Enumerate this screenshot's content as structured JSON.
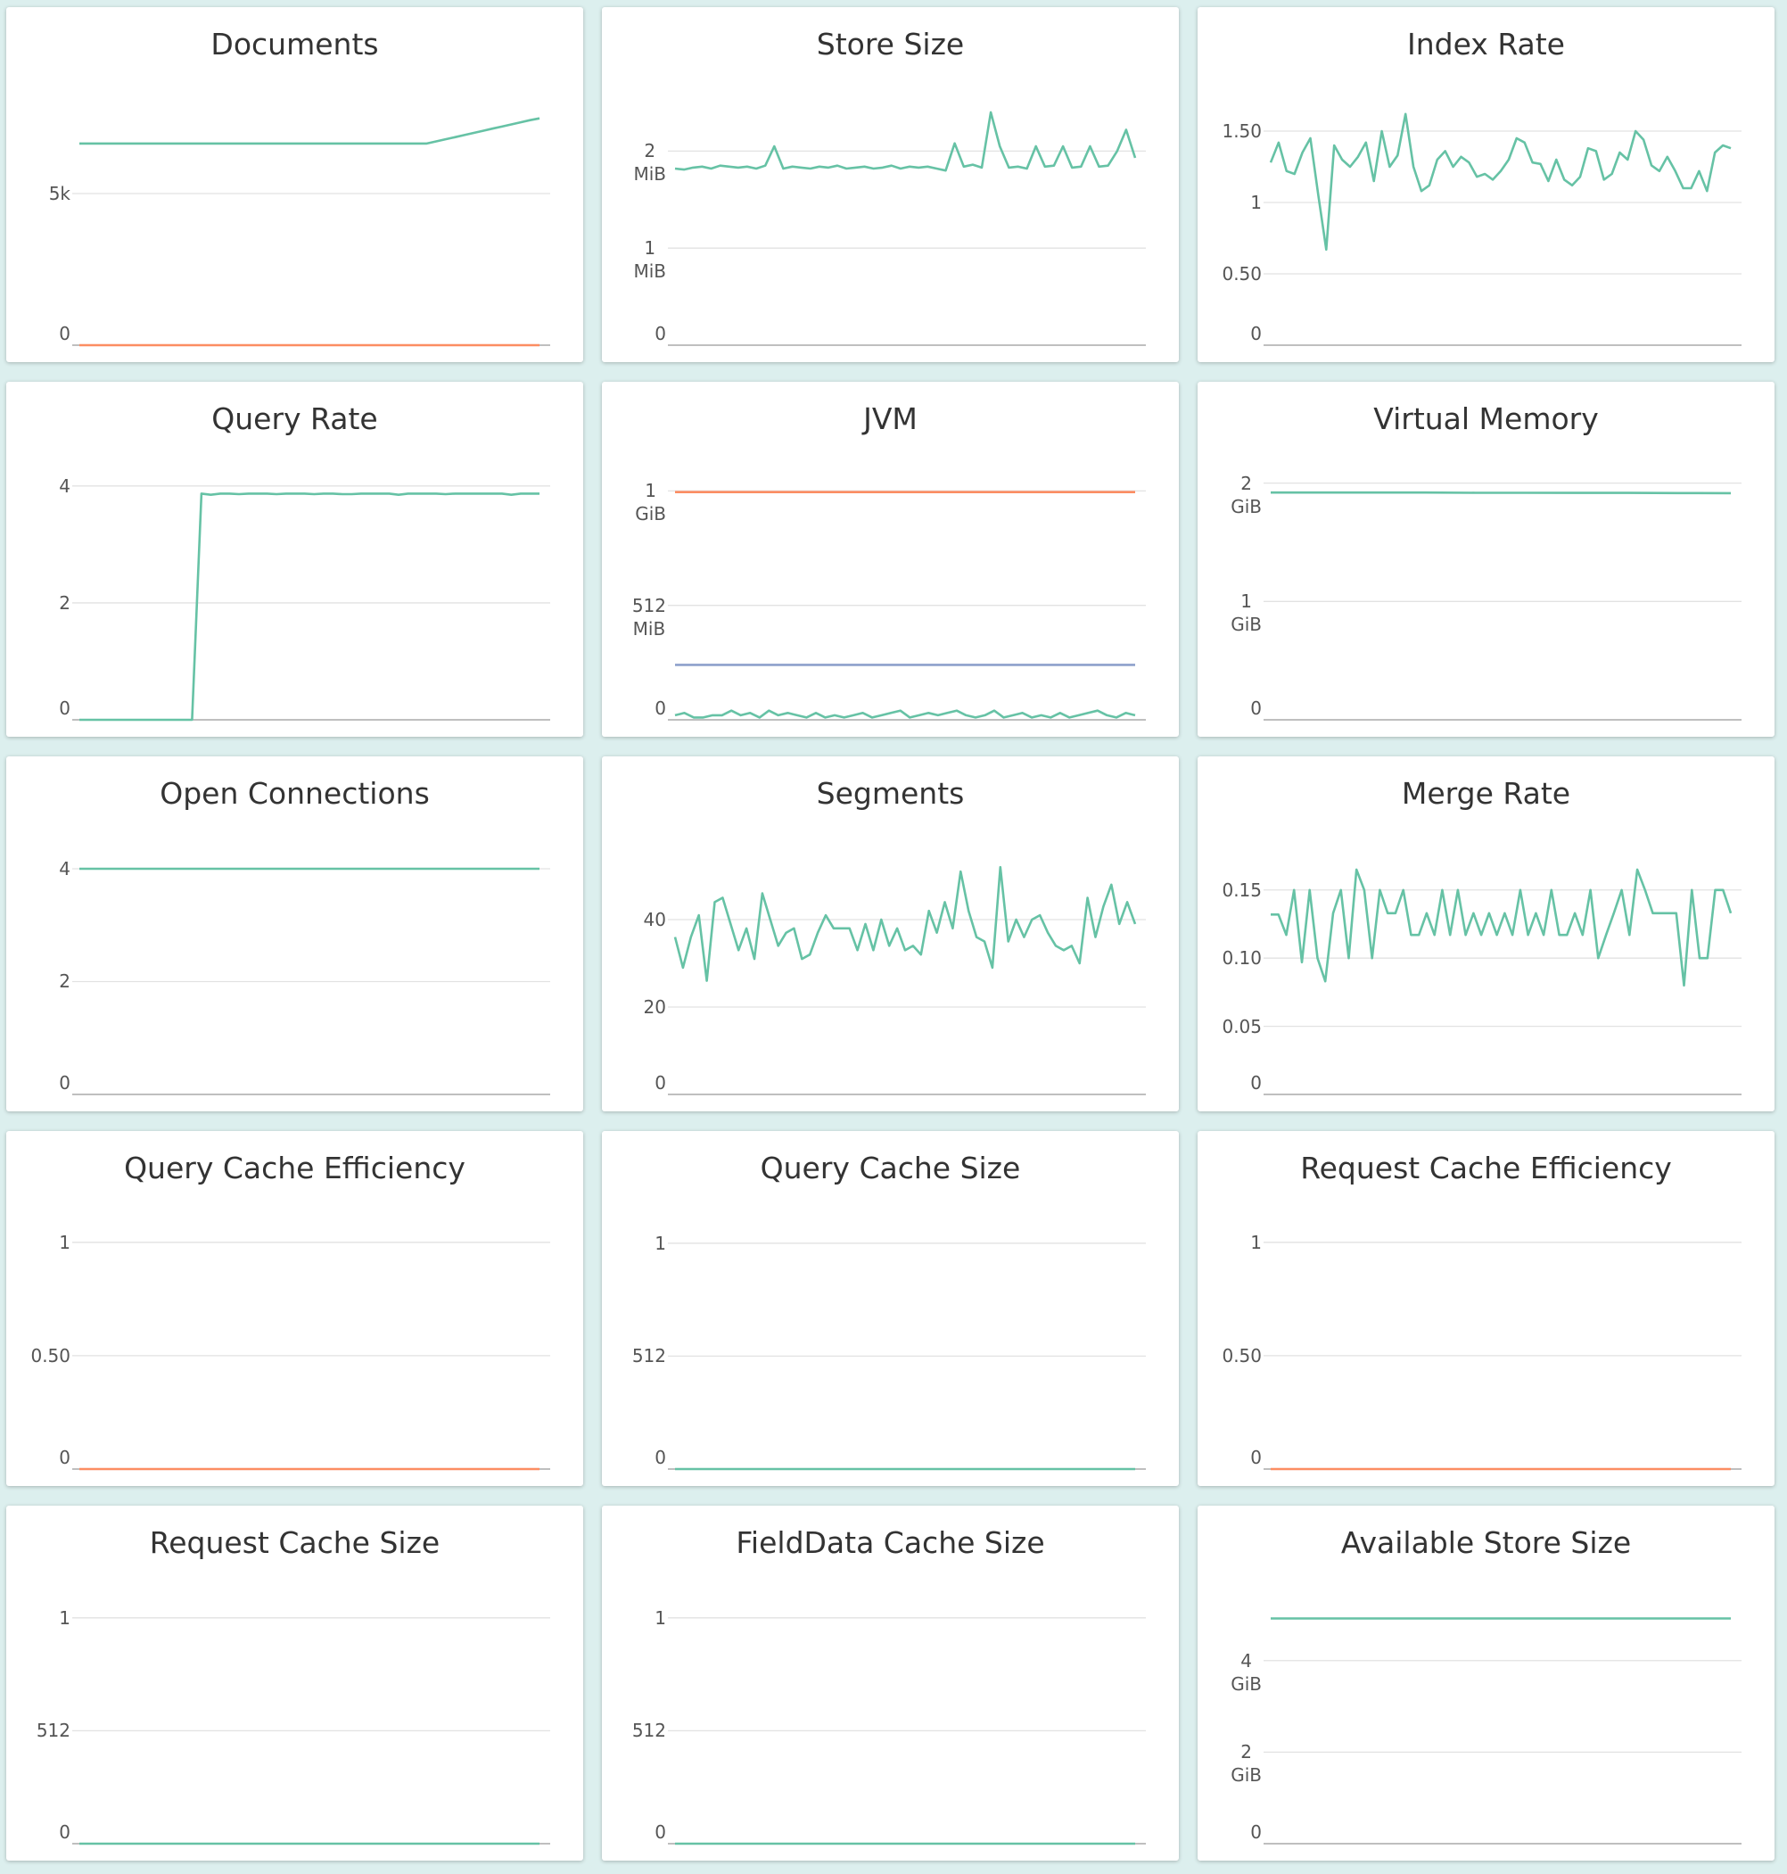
{
  "chart_data": [
    {
      "type": "line",
      "title": "Documents",
      "ylim": [
        0,
        8000
      ],
      "yticks": [
        0,
        {
          "value": 5000,
          "label": "5k"
        }
      ],
      "grid": true,
      "series": [
        {
          "color": "#66c2a5",
          "values": [
            6650,
            6650,
            6650,
            6650,
            6650,
            6650,
            6650,
            6650,
            6650,
            6650,
            6650,
            6650,
            6650,
            6650,
            6650,
            6650,
            6650,
            6650,
            6650,
            6650,
            6650,
            6650,
            6650,
            6650,
            6650,
            6650,
            6650,
            6650,
            6650,
            6650,
            6650,
            6650,
            6650,
            6650,
            6650,
            6650,
            6650,
            6650,
            6720,
            6790,
            6860,
            6930,
            7000,
            7070,
            7140,
            7210,
            7280,
            7350,
            7420,
            7480
          ]
        },
        {
          "color": "#fc8d62",
          "values": [
            0,
            0,
            0,
            0,
            0,
            0,
            0,
            0,
            0,
            0
          ]
        }
      ]
    },
    {
      "type": "line",
      "title": "Store Size",
      "ylim": [
        0,
        2.5
      ],
      "yticks": [
        0,
        {
          "value": 1,
          "label": "1\nMiB"
        },
        {
          "value": 2,
          "label": "2\nMiB"
        }
      ],
      "grid": true,
      "series": [
        {
          "color": "#66c2a5",
          "values": [
            1.82,
            1.81,
            1.83,
            1.84,
            1.82,
            1.85,
            1.84,
            1.83,
            1.84,
            1.82,
            1.85,
            2.05,
            1.82,
            1.84,
            1.83,
            1.82,
            1.84,
            1.83,
            1.85,
            1.82,
            1.83,
            1.84,
            1.82,
            1.83,
            1.85,
            1.82,
            1.84,
            1.83,
            1.84,
            1.82,
            1.8,
            2.08,
            1.84,
            1.86,
            1.83,
            2.4,
            2.05,
            1.83,
            1.84,
            1.82,
            2.05,
            1.84,
            1.85,
            2.05,
            1.83,
            1.84,
            2.05,
            1.84,
            1.85,
            2.0,
            2.22,
            1.93
          ]
        }
      ]
    },
    {
      "type": "line",
      "title": "Index Rate",
      "ylim": [
        0,
        1.7
      ],
      "yticks": [
        0,
        {
          "value": 0.5,
          "label": "0.50"
        },
        1,
        {
          "value": 1.5,
          "label": "1.50"
        }
      ],
      "grid": true,
      "series": [
        {
          "color": "#66c2a5",
          "values": [
            1.28,
            1.42,
            1.22,
            1.2,
            1.35,
            1.45,
            1.05,
            0.67,
            1.4,
            1.3,
            1.25,
            1.32,
            1.42,
            1.15,
            1.5,
            1.25,
            1.33,
            1.62,
            1.25,
            1.08,
            1.12,
            1.3,
            1.36,
            1.25,
            1.32,
            1.28,
            1.18,
            1.2,
            1.16,
            1.22,
            1.3,
            1.45,
            1.42,
            1.28,
            1.27,
            1.15,
            1.3,
            1.16,
            1.12,
            1.18,
            1.38,
            1.36,
            1.16,
            1.2,
            1.35,
            1.3,
            1.5,
            1.44,
            1.26,
            1.22,
            1.32,
            1.22,
            1.1,
            1.1,
            1.22,
            1.08,
            1.35,
            1.4,
            1.38
          ]
        }
      ]
    },
    {
      "type": "line",
      "title": "Query Rate",
      "ylim": [
        0,
        4.15
      ],
      "yticks": [
        0,
        2,
        4
      ],
      "grid": true,
      "series": [
        {
          "color": "#66c2a5",
          "values": [
            0,
            0,
            0,
            0,
            0,
            0,
            0,
            0,
            0,
            0,
            0,
            0,
            0,
            3.87,
            3.85,
            3.87,
            3.87,
            3.86,
            3.87,
            3.87,
            3.87,
            3.86,
            3.87,
            3.87,
            3.87,
            3.86,
            3.87,
            3.87,
            3.86,
            3.86,
            3.87,
            3.87,
            3.87,
            3.87,
            3.85,
            3.87,
            3.87,
            3.87,
            3.87,
            3.86,
            3.87,
            3.87,
            3.87,
            3.87,
            3.87,
            3.87,
            3.85,
            3.87,
            3.87,
            3.87
          ]
        }
      ]
    },
    {
      "type": "line",
      "title": "JVM",
      "ylim": [
        0,
        1.06
      ],
      "yticks": [
        0,
        {
          "value": 0.5,
          "label": "512\nMiB"
        },
        {
          "value": 1,
          "label": "1\nGiB"
        }
      ],
      "grid": true,
      "series": [
        {
          "color": "#fc8d62",
          "values": [
            0.995,
            0.995,
            0.995,
            0.995,
            0.995,
            0.995,
            0.995,
            0.995,
            0.995,
            0.995
          ]
        },
        {
          "color": "#8da0cb",
          "values": [
            0.24,
            0.24,
            0.24,
            0.24,
            0.24,
            0.24,
            0.24,
            0.24,
            0.24,
            0.24
          ]
        },
        {
          "color": "#66c2a5",
          "values": [
            0.02,
            0.03,
            0.01,
            0.01,
            0.02,
            0.02,
            0.04,
            0.02,
            0.03,
            0.01,
            0.04,
            0.02,
            0.03,
            0.02,
            0.01,
            0.03,
            0.01,
            0.02,
            0.01,
            0.02,
            0.03,
            0.01,
            0.02,
            0.03,
            0.04,
            0.01,
            0.02,
            0.03,
            0.02,
            0.03,
            0.04,
            0.02,
            0.01,
            0.02,
            0.04,
            0.01,
            0.02,
            0.03,
            0.01,
            0.02,
            0.01,
            0.03,
            0.01,
            0.02,
            0.03,
            0.04,
            0.02,
            0.01,
            0.03,
            0.02
          ]
        }
      ]
    },
    {
      "type": "line",
      "title": "Virtual Memory",
      "ylim": [
        0,
        2.05
      ],
      "yticks": [
        0,
        {
          "value": 1,
          "label": "1\nGiB"
        },
        {
          "value": 2,
          "label": "2\nGiB"
        }
      ],
      "grid": true,
      "series": [
        {
          "color": "#66c2a5",
          "values": [
            1.92,
            1.92,
            1.92,
            1.92,
            1.918,
            1.918,
            1.917,
            1.917,
            1.916,
            1.915
          ]
        }
      ]
    },
    {
      "type": "line",
      "title": "Open Connections",
      "ylim": [
        0,
        4.3
      ],
      "yticks": [
        0,
        2,
        4
      ],
      "grid": true,
      "series": [
        {
          "color": "#66c2a5",
          "values": [
            4,
            4,
            4,
            4,
            4,
            4,
            4,
            4,
            4,
            4
          ]
        }
      ]
    },
    {
      "type": "line",
      "title": "Segments",
      "ylim": [
        0,
        55.5
      ],
      "yticks": [
        0,
        20,
        40
      ],
      "grid": true,
      "series": [
        {
          "color": "#66c2a5",
          "values": [
            36,
            29,
            36,
            41,
            26,
            44,
            45,
            39,
            33,
            38,
            31,
            46,
            40,
            34,
            37,
            38,
            31,
            32,
            37,
            41,
            38,
            38,
            38,
            33,
            39,
            33,
            40,
            34,
            38,
            33,
            34,
            32,
            42,
            37,
            44,
            38,
            51,
            42,
            36,
            35,
            29,
            52,
            35,
            40,
            36,
            40,
            41,
            37,
            34,
            33,
            34,
            30,
            45,
            36,
            43,
            48,
            39,
            44,
            39
          ]
        }
      ]
    },
    {
      "type": "line",
      "title": "Merge Rate",
      "ylim": [
        0,
        0.178
      ],
      "yticks": [
        0,
        {
          "value": 0.05,
          "label": "0.05"
        },
        {
          "value": 0.1,
          "label": "0.10"
        },
        {
          "value": 0.15,
          "label": "0.15"
        }
      ],
      "grid": true,
      "series": [
        {
          "color": "#66c2a5",
          "values": [
            0.132,
            0.132,
            0.117,
            0.15,
            0.097,
            0.15,
            0.1,
            0.083,
            0.133,
            0.15,
            0.1,
            0.165,
            0.15,
            0.1,
            0.15,
            0.133,
            0.133,
            0.15,
            0.117,
            0.117,
            0.133,
            0.117,
            0.15,
            0.117,
            0.15,
            0.117,
            0.133,
            0.117,
            0.133,
            0.117,
            0.133,
            0.117,
            0.15,
            0.117,
            0.133,
            0.117,
            0.15,
            0.117,
            0.117,
            0.133,
            0.117,
            0.15,
            0.1,
            0.117,
            0.133,
            0.15,
            0.117,
            0.165,
            0.15,
            0.133,
            0.133,
            0.133,
            0.133,
            0.08,
            0.15,
            0.1,
            0.1,
            0.15,
            0.15,
            0.133
          ]
        }
      ]
    },
    {
      "type": "line",
      "title": "Query Cache Efficiency",
      "ylim": [
        0,
        1.07
      ],
      "yticks": [
        0,
        {
          "value": 0.5,
          "label": "0.50"
        },
        1
      ],
      "grid": true,
      "series": [
        {
          "color": "#fc8d62",
          "values": [
            0,
            0,
            0,
            0,
            0,
            0,
            0,
            0,
            0,
            0
          ]
        }
      ]
    },
    {
      "type": "line",
      "title": "Query Cache Size",
      "ylim": [
        0,
        1100
      ],
      "yticks": [
        0,
        512,
        {
          "value": 1024,
          "label": "1"
        }
      ],
      "grid": true,
      "series": [
        {
          "color": "#66c2a5",
          "values": [
            0,
            0,
            0,
            0,
            0,
            0,
            0,
            0,
            0,
            0
          ]
        }
      ]
    },
    {
      "type": "line",
      "title": "Request Cache Efficiency",
      "ylim": [
        0,
        1.07
      ],
      "yticks": [
        0,
        {
          "value": 0.5,
          "label": "0.50"
        },
        1
      ],
      "grid": true,
      "series": [
        {
          "color": "#fc8d62",
          "values": [
            0,
            0,
            0,
            0,
            0,
            0,
            0,
            0,
            0,
            0
          ]
        }
      ]
    },
    {
      "type": "line",
      "title": "Request Cache Size",
      "ylim": [
        0,
        1100
      ],
      "yticks": [
        0,
        512,
        {
          "value": 1024,
          "label": "1"
        }
      ],
      "grid": true,
      "series": [
        {
          "color": "#66c2a5",
          "values": [
            0,
            0,
            0,
            0,
            0,
            0,
            0,
            0,
            0,
            0
          ]
        }
      ]
    },
    {
      "type": "line",
      "title": "FieldData Cache Size",
      "ylim": [
        0,
        1100
      ],
      "yticks": [
        0,
        512,
        {
          "value": 1024,
          "label": "1"
        }
      ],
      "grid": true,
      "series": [
        {
          "color": "#66c2a5",
          "values": [
            0,
            0,
            0,
            0,
            0,
            0,
            0,
            0,
            0,
            0
          ]
        }
      ]
    },
    {
      "type": "line",
      "title": "Available Store Size",
      "ylim": [
        0,
        5.3
      ],
      "yticks": [
        0,
        {
          "value": 2,
          "label": "2\nGiB"
        },
        {
          "value": 4,
          "label": "4\nGiB"
        }
      ],
      "grid": true,
      "series": [
        {
          "color": "#66c2a5",
          "values": [
            4.92,
            4.92,
            4.92,
            4.92,
            4.92,
            4.92,
            4.92,
            4.92,
            4.92,
            4.92
          ]
        }
      ]
    }
  ]
}
